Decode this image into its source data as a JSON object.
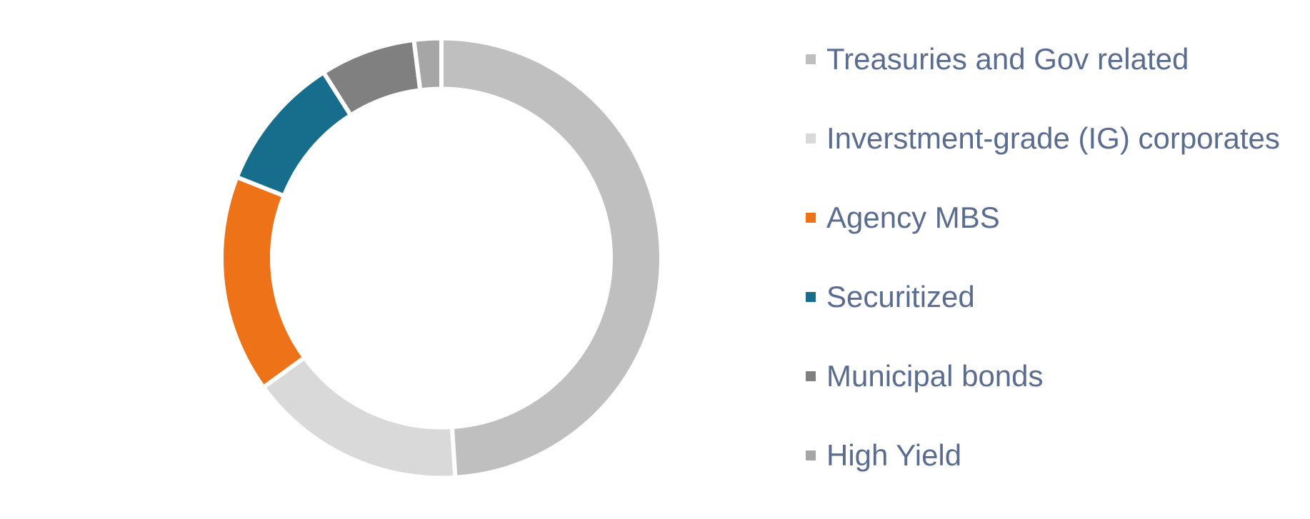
{
  "page": {
    "background_color": "#FFFFFF"
  },
  "chart_data": {
    "type": "pie",
    "subtype": "donut",
    "title": "",
    "legend_position": "right",
    "direction": "clockwise",
    "start_angle_deg": 0,
    "inner_radius_ratio": 0.77,
    "values_unit": "percent (estimated from arc angles; no data labels shown)",
    "slice_separator_color": "#FFFFFF",
    "legend_text_color": "#5A6C90",
    "slices": [
      {
        "label": "Treasuries and Gov related",
        "value": 49,
        "color": "#BFBFBF"
      },
      {
        "label": "Inverstment-grade (IG) corporates",
        "value": 16,
        "color": "#D9D9D9"
      },
      {
        "label": "Agency MBS",
        "value": 16,
        "color": "#ED7218"
      },
      {
        "label": "Securitized",
        "value": 10,
        "color": "#166E8C"
      },
      {
        "label": "Municipal bonds",
        "value": 7,
        "color": "#808080"
      },
      {
        "label": "High Yield",
        "value": 2,
        "color": "#A6A6A6"
      }
    ]
  }
}
